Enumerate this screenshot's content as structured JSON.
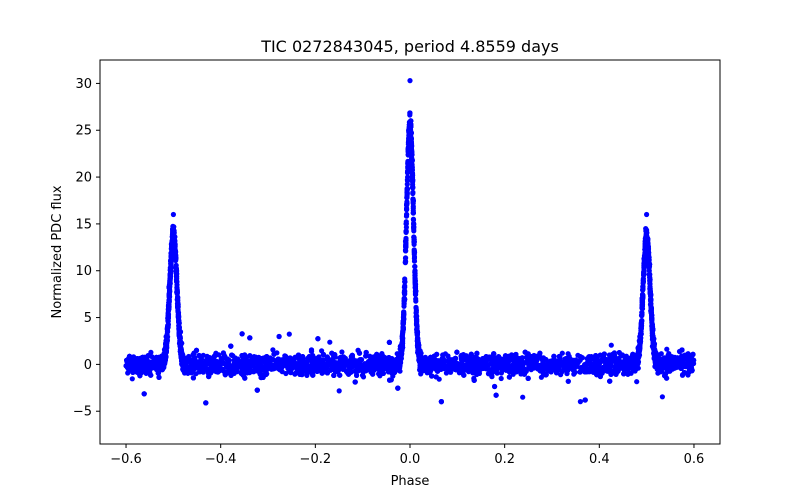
{
  "chart_data": {
    "type": "scatter",
    "title": "TIC 0272843045, period 4.8559 days",
    "xlabel": "Phase",
    "ylabel": "Normalized PDC flux",
    "xlim": [
      -0.655,
      0.655
    ],
    "ylim": [
      -8.5,
      32.5
    ],
    "xticks": [
      -0.6,
      -0.4,
      -0.2,
      0.0,
      0.2,
      0.4,
      0.6
    ],
    "xtick_labels": [
      "−0.6",
      "−0.4",
      "−0.2",
      "0.0",
      "0.2",
      "0.4",
      "0.6"
    ],
    "yticks": [
      -5,
      0,
      5,
      10,
      15,
      20,
      25,
      30
    ],
    "ytick_labels": [
      "−5",
      "0",
      "5",
      "10",
      "15",
      "20",
      "25",
      "30"
    ],
    "grid": false,
    "legend": "none",
    "series": [
      {
        "marker_color": "#0000ff",
        "peaks": [
          {
            "phase": -0.5,
            "peak_flux": 14.0,
            "max_flux": 16.0
          },
          {
            "phase": 0.0,
            "peak_flux": 25.5,
            "max_flux": 30.3
          },
          {
            "phase": 0.5,
            "peak_flux": 13.5,
            "max_flux": 16.0
          }
        ],
        "phase_range": [
          -0.6,
          0.6
        ],
        "baseline_flux": 0.0,
        "baseline_min": -6.6,
        "baseline_max": 5.8
      }
    ]
  }
}
